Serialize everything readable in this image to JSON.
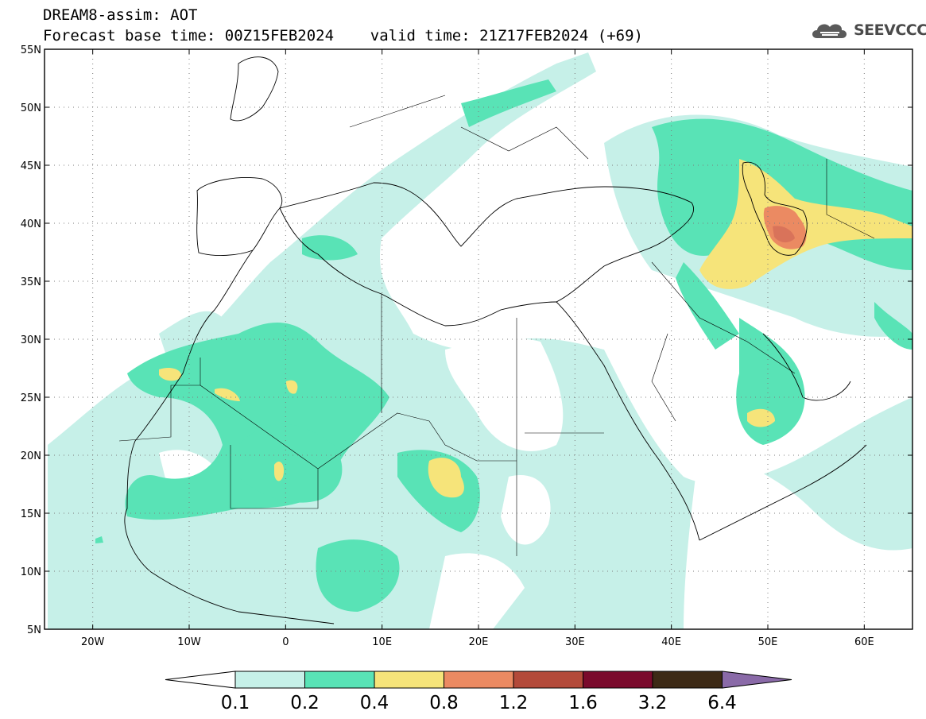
{
  "header": {
    "line1": "DREAM8-assim: AOT",
    "line2": "Forecast base time: 00Z15FEB2024    valid time: 21Z17FEB2024 (+69)"
  },
  "logo": {
    "icon": "cloud-icon",
    "text": "SEEVCCC"
  },
  "axes": {
    "lat_labels": [
      "55N",
      "50N",
      "45N",
      "40N",
      "35N",
      "30N",
      "25N",
      "20N",
      "15N",
      "10N",
      "5N"
    ],
    "lat_values": [
      55,
      50,
      45,
      40,
      35,
      30,
      25,
      20,
      15,
      10,
      5
    ],
    "lon_labels": [
      "20W",
      "10W",
      "0",
      "10E",
      "20E",
      "30E",
      "40E",
      "50E",
      "60E"
    ],
    "lon_values": [
      -20,
      -10,
      0,
      10,
      20,
      30,
      40,
      50,
      60
    ],
    "lon_range": [
      -25,
      65
    ],
    "lat_range": [
      5,
      55
    ],
    "grid": "dotted"
  },
  "colorbar": {
    "labels": [
      "0.1",
      "0.2",
      "0.4",
      "0.8",
      "1.2",
      "1.6",
      "3.2",
      "6.4"
    ],
    "colors": [
      "#c6f0e8",
      "#59e3b6",
      "#f6e47a",
      "#eb8a62",
      "#b34a3a",
      "#7a0a2c",
      "#3d2a16"
    ],
    "over_color": "#8a6aa8",
    "under_color": "#ffffff"
  },
  "colors": {
    "c1": "#c6f0e8",
    "c2": "#59e3b6",
    "c3": "#f6e47a",
    "c4": "#eb8a62",
    "c5": "#d9735a"
  }
}
